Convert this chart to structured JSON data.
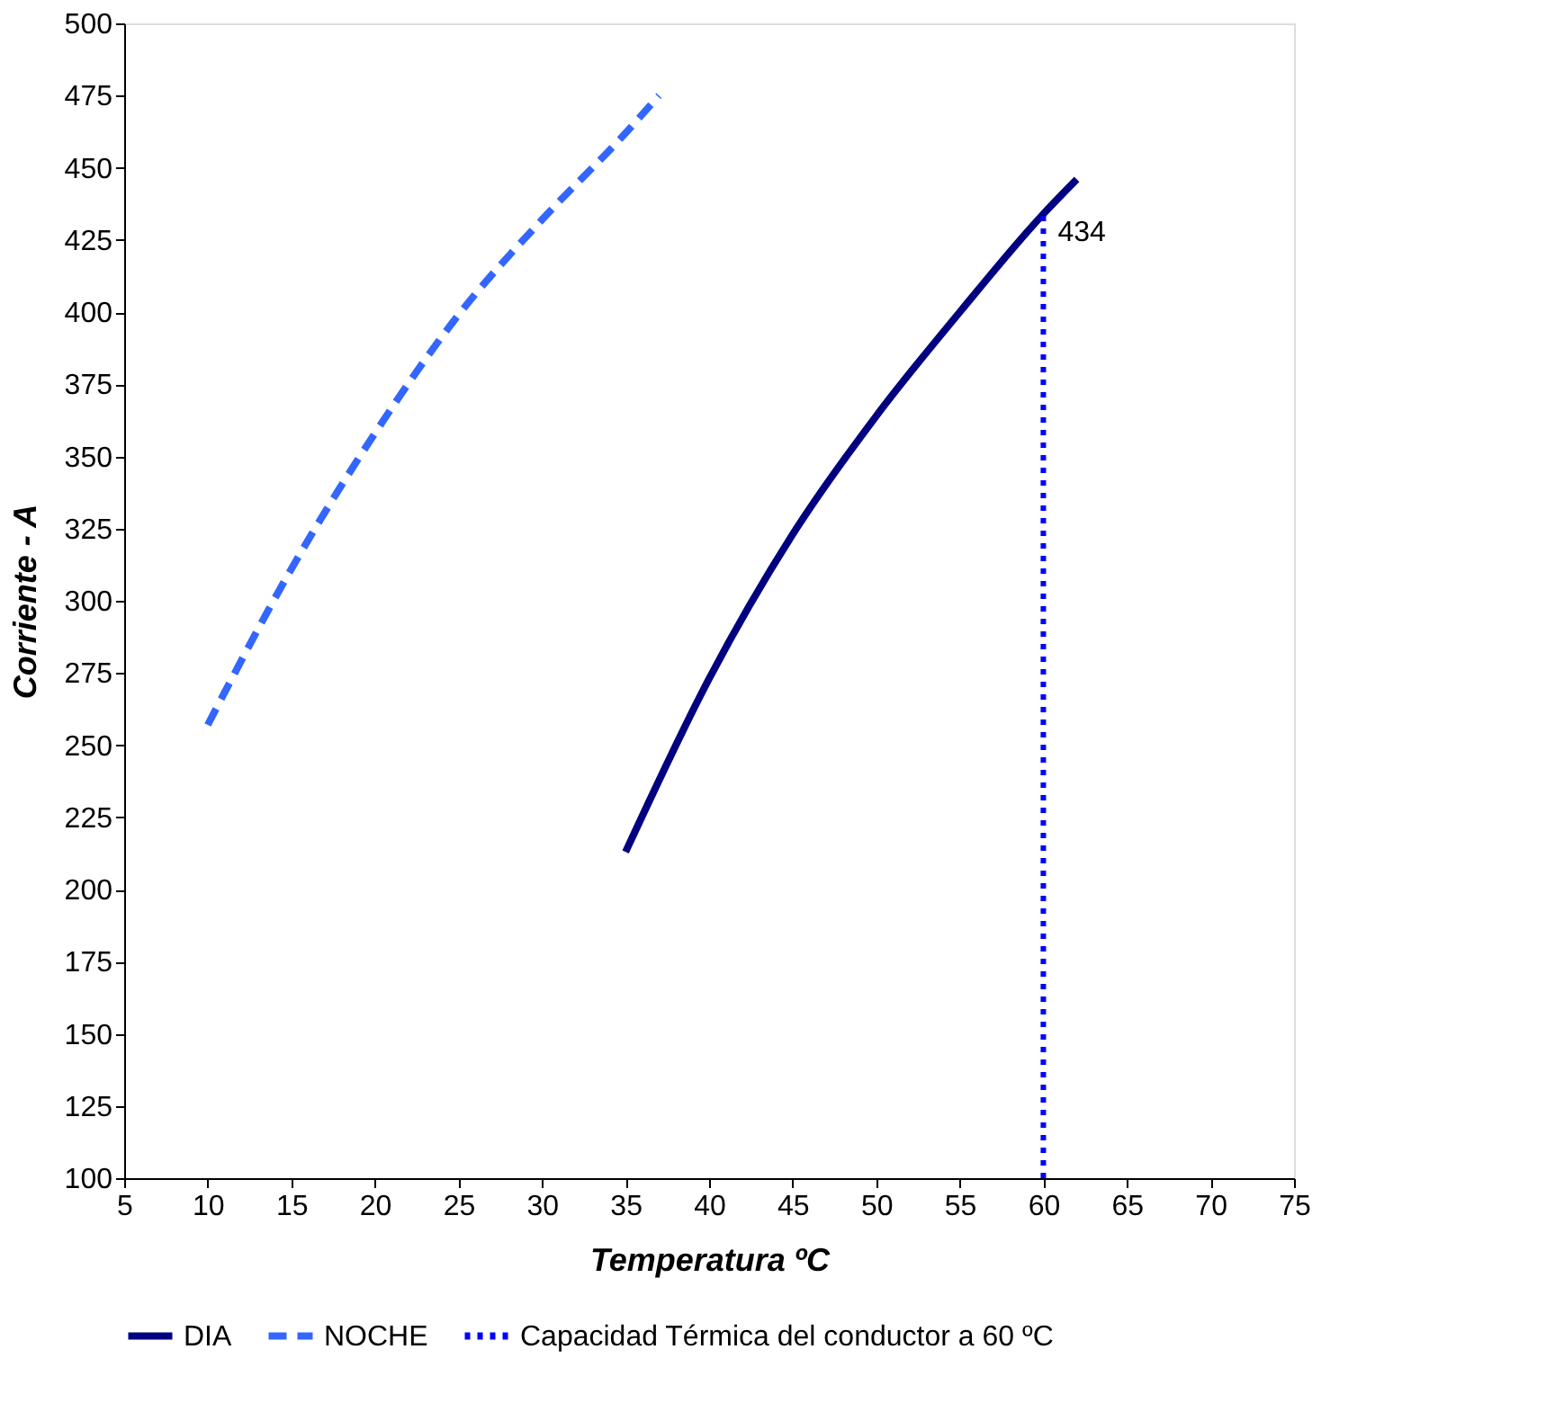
{
  "chart_data": {
    "type": "line",
    "xlabel": "Temperatura ºC",
    "ylabel": "Corriente - A",
    "xlim": [
      5,
      75
    ],
    "xticks": [
      5,
      10,
      15,
      20,
      25,
      30,
      35,
      40,
      45,
      50,
      55,
      60,
      65,
      70,
      75
    ],
    "ylim": [
      100,
      500
    ],
    "yticks": [
      100,
      125,
      150,
      175,
      200,
      225,
      250,
      275,
      300,
      325,
      350,
      375,
      400,
      425,
      450,
      475,
      500
    ],
    "grid": false,
    "legend": "bottom",
    "marker": "none",
    "series": [
      {
        "name": "DIA",
        "color": "#000080",
        "line_style": "solid",
        "x": [
          35,
          40,
          45,
          50,
          55,
          60,
          62
        ],
        "values": [
          213,
          273,
          323,
          364,
          400,
          434,
          446
        ]
      },
      {
        "name": "NOCHE",
        "color": "#3366ff",
        "line_style": "dashed",
        "x": [
          10,
          15,
          20,
          25,
          30,
          35,
          37
        ],
        "values": [
          257,
          311,
          358,
          399,
          432,
          462,
          475
        ]
      },
      {
        "name": "Capacidad Térmica del conductor a 60 ºC",
        "color": "#0000ff",
        "line_style": "dotted",
        "x": [
          60,
          60
        ],
        "values": [
          100,
          434
        ]
      }
    ],
    "annotations": [
      {
        "text": "434",
        "x": 60,
        "y": 434
      }
    ]
  }
}
